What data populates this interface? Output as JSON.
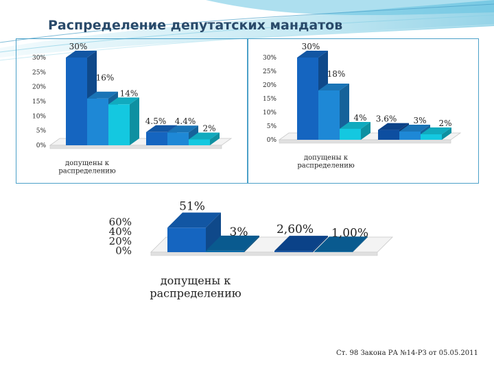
{
  "title": "Распределение депутатских мандатов",
  "footer": "Ст. 98 Закона РА №14-РЗ от 05.05.2011",
  "colors": {
    "title": "#2a4a6a",
    "panel_border": "#4aa0c8",
    "bar_palette": [
      "#1565c0",
      "#1e88d6",
      "#14c8e0"
    ],
    "bar_palette_dark": [
      "#0d4ea0",
      "#0a6aa8"
    ]
  },
  "chart_data": [
    {
      "type": "bar",
      "style": "3d",
      "groups": [
        "допущены к распределению",
        ""
      ],
      "categories_label": "допущены к распределению",
      "values": [
        30,
        16,
        14,
        4.5,
        4.4,
        2
      ],
      "labels": [
        "30%",
        "16%",
        "14%",
        "4.5%",
        "4.4%",
        "2%"
      ],
      "ytick_labels": [
        "30%",
        "25%",
        "20%",
        "15%",
        "10%",
        "5%",
        "0%"
      ],
      "ylim": [
        0,
        30
      ]
    },
    {
      "type": "bar",
      "style": "3d",
      "categories_label": "допущены к распределению",
      "values": [
        30,
        18,
        4,
        3.6,
        3,
        2
      ],
      "labels": [
        "30%",
        "18%",
        "4%",
        "3.6%",
        "3%",
        "2%"
      ],
      "ytick_labels": [
        "30%",
        "25%",
        "20%",
        "15%",
        "10%",
        "5%",
        "0%"
      ],
      "ylim": [
        0,
        30
      ]
    },
    {
      "type": "bar",
      "style": "3d",
      "categories_label": "допущены к распределению",
      "values": [
        51,
        3,
        2.6,
        1
      ],
      "labels": [
        "51%",
        "3%",
        "2,60%",
        "1,00%"
      ],
      "ytick_labels": [
        "60%",
        "40%",
        "20%",
        "0%"
      ],
      "ylim": [
        0,
        60
      ]
    }
  ]
}
